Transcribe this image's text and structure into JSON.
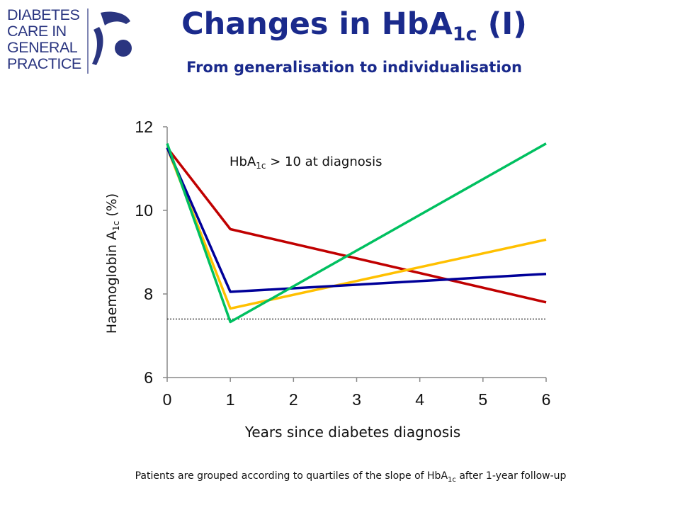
{
  "logo": {
    "lines": [
      "DIABETES",
      "CARE IN",
      "GENERAL",
      "PRACTICE"
    ]
  },
  "title": {
    "main": "Changes in HbA",
    "sub": "1c",
    "suffix": " (I)"
  },
  "subtitle": "From generalisation to individualisation",
  "footnote": {
    "before": "Patients are grouped according to quartiles of the slope of HbA",
    "sub": "1c",
    "after": " after 1-year follow-up"
  },
  "chart_data": {
    "type": "line",
    "title": "",
    "xlabel": "Years since diabetes diagnosis",
    "ylabel": {
      "before": "Haemoglobin A",
      "sub": "1c",
      "after": " (%)"
    },
    "annotation": {
      "before": "HbA",
      "sub": "1c",
      "after": " > 10 at diagnosis"
    },
    "x_ticks": [
      0,
      1,
      2,
      3,
      4,
      5,
      6
    ],
    "y_ticks": [
      6,
      8,
      10,
      12
    ],
    "xlim": [
      0,
      6
    ],
    "ylim": [
      6,
      12
    ],
    "reference_line": {
      "y": 7.4,
      "style": "dotted"
    },
    "grid": false,
    "series": [
      {
        "color": "#c00000",
        "points": [
          [
            0,
            11.5
          ],
          [
            1,
            9.55
          ],
          [
            6,
            7.8
          ]
        ]
      },
      {
        "color": "#ffc000",
        "points": [
          [
            0,
            11.5
          ],
          [
            1,
            7.65
          ],
          [
            6,
            9.3
          ]
        ]
      },
      {
        "color": "#000099",
        "points": [
          [
            0,
            11.5
          ],
          [
            1,
            8.05
          ],
          [
            6,
            8.48
          ]
        ]
      },
      {
        "color": "#00c060",
        "points": [
          [
            0,
            11.6
          ],
          [
            1,
            7.33
          ],
          [
            6,
            11.6
          ]
        ]
      }
    ]
  }
}
